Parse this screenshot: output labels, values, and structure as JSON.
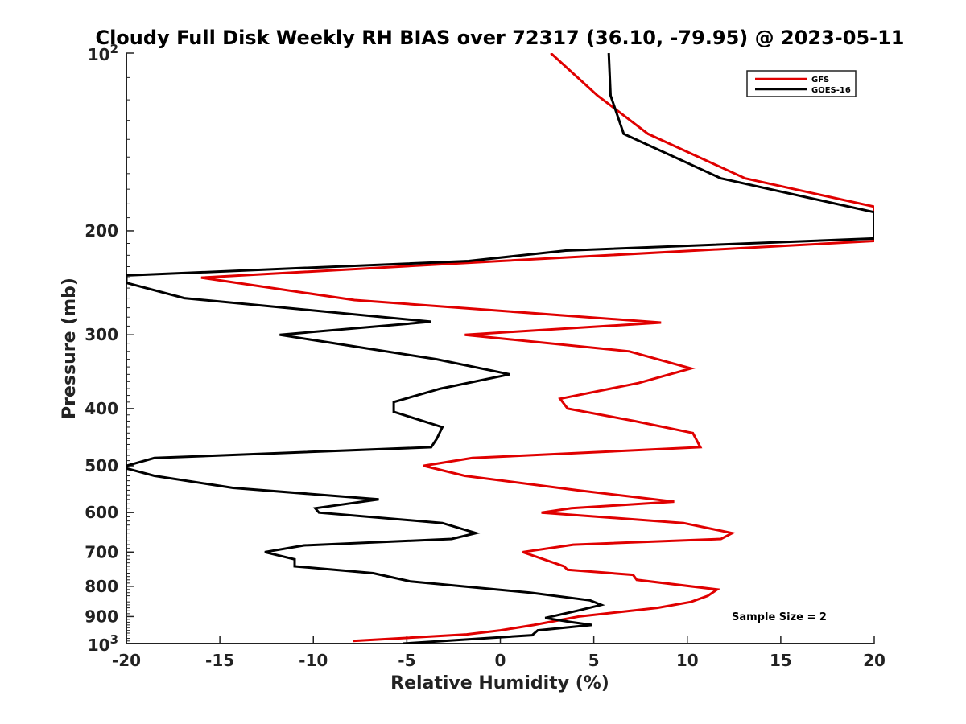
{
  "chart_data": {
    "type": "line",
    "title": "Cloudy Full Disk Weekly RH BIAS over 72317 (36.10, -79.95) @ 2023-05-11",
    "xlabel": "Relative Humidity (%)",
    "ylabel": "Pressure (mb)",
    "xlim": [
      -20,
      20
    ],
    "ylim": [
      1000,
      100
    ],
    "yscale": "log",
    "y_reversed": true,
    "grid": false,
    "legend_position": "top-right",
    "x_ticks": [
      -20,
      -15,
      -10,
      -5,
      0,
      5,
      10,
      15,
      20
    ],
    "x_tick_labels": [
      "-20",
      "-15",
      "-10",
      "-5",
      "0",
      "5",
      "10",
      "15",
      "20"
    ],
    "y_ticks": [
      200,
      300,
      400,
      500,
      600,
      700,
      800,
      900
    ],
    "y_tick_labels": [
      "200",
      "300",
      "400",
      "500",
      "600",
      "700",
      "800",
      "900"
    ],
    "y_end_labels": [
      {
        "value": 100,
        "base": "10",
        "exp": "2"
      },
      {
        "value": 1000,
        "base": "10",
        "exp": "3"
      }
    ],
    "annotation": "Sample Size = 2",
    "series": [
      {
        "name": "GFS",
        "color": "#e00000",
        "points": [
          [
            2.7,
            100
          ],
          [
            5.2,
            118
          ],
          [
            7.9,
            137
          ],
          [
            13.1,
            163
          ],
          [
            20,
            182
          ],
          [
            20,
            208
          ],
          [
            0,
            225
          ],
          [
            -16,
            240
          ],
          [
            -7.8,
            262
          ],
          [
            8.6,
            286
          ],
          [
            -1.9,
            300
          ],
          [
            6.9,
            320
          ],
          [
            10.2,
            342
          ],
          [
            7.4,
            362
          ],
          [
            3.2,
            385
          ],
          [
            3.6,
            400
          ],
          [
            7.2,
            420
          ],
          [
            10.3,
            440
          ],
          [
            10.7,
            465
          ],
          [
            -1.5,
            485
          ],
          [
            -4.1,
            500
          ],
          [
            -1.9,
            520
          ],
          [
            4.1,
            550
          ],
          [
            9.3,
            575
          ],
          [
            3.8,
            590
          ],
          [
            2.2,
            600
          ],
          [
            9.8,
            625
          ],
          [
            12.4,
            650
          ],
          [
            11.8,
            665
          ],
          [
            3.9,
            680
          ],
          [
            1.2,
            700
          ],
          [
            3.4,
            740
          ],
          [
            3.6,
            750
          ],
          [
            7.1,
            765
          ],
          [
            7.3,
            780
          ],
          [
            11.6,
            810
          ],
          [
            11.1,
            830
          ],
          [
            10.2,
            850
          ],
          [
            8.4,
            870
          ],
          [
            4.2,
            900
          ],
          [
            1.8,
            930
          ],
          [
            0,
            950
          ],
          [
            -1.8,
            965
          ],
          [
            -7.9,
            990
          ]
        ]
      },
      {
        "name": "GOES-16",
        "color": "#000000",
        "points": [
          [
            5.8,
            100
          ],
          [
            5.9,
            118
          ],
          [
            6.6,
            137
          ],
          [
            11.8,
            163
          ],
          [
            20,
            186
          ],
          [
            20,
            206
          ],
          [
            3.5,
            216
          ],
          [
            -1.7,
            225
          ],
          [
            -20,
            238
          ],
          [
            -20,
            245
          ],
          [
            -16.9,
            260
          ],
          [
            -3.7,
            285
          ],
          [
            -11.8,
            300
          ],
          [
            -3.4,
            330
          ],
          [
            0.5,
            350
          ],
          [
            -3.2,
            370
          ],
          [
            -5.7,
            390
          ],
          [
            -5.7,
            405
          ],
          [
            -3.1,
            430
          ],
          [
            -3.4,
            450
          ],
          [
            -3.7,
            465
          ],
          [
            -18.5,
            485
          ],
          [
            -20,
            500
          ],
          [
            -20,
            505
          ],
          [
            -18.5,
            520
          ],
          [
            -14.3,
            545
          ],
          [
            -6.5,
            570
          ],
          [
            -9.9,
            590
          ],
          [
            -9.7,
            600
          ],
          [
            -3.1,
            625
          ],
          [
            -1.3,
            650
          ],
          [
            -2.6,
            665
          ],
          [
            -10.5,
            682
          ],
          [
            -12.6,
            700
          ],
          [
            -11,
            720
          ],
          [
            -11,
            740
          ],
          [
            -6.8,
            760
          ],
          [
            -4.8,
            785
          ],
          [
            1.6,
            820
          ],
          [
            4.8,
            845
          ],
          [
            5.4,
            860
          ],
          [
            4.1,
            880
          ],
          [
            2.4,
            905
          ],
          [
            3.8,
            920
          ],
          [
            4.9,
            930
          ],
          [
            2,
            950
          ],
          [
            1.7,
            968
          ],
          [
            -5.2,
            1000
          ]
        ]
      }
    ]
  }
}
